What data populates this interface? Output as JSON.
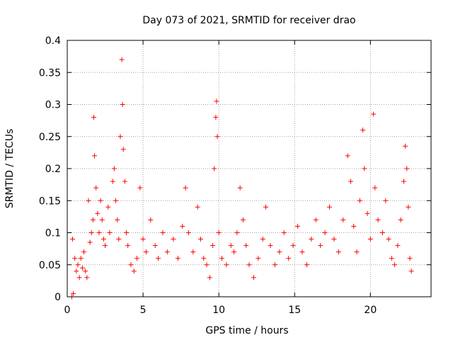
{
  "chart_data": {
    "type": "scatter",
    "title": "Day 073 of 2021, SRMTID for receiver drao",
    "xlabel": "GPS time / hours",
    "ylabel": "SRMTID / TECUs",
    "xlim": [
      0,
      24
    ],
    "ylim": [
      0,
      0.4
    ],
    "grid": true,
    "marker": "+",
    "x_ticks": [
      0,
      5,
      10,
      15,
      20
    ],
    "x_tick_labels": [
      "0",
      "5",
      "10",
      "15",
      "20"
    ],
    "y_ticks": [
      0,
      0.05,
      0.1,
      0.15,
      0.2,
      0.25,
      0.3,
      0.35,
      0.4
    ],
    "y_tick_labels": [
      "0",
      "0.05",
      "0.1",
      "0.15",
      "0.2",
      "0.25",
      "0.3",
      "0.35",
      "0.4"
    ],
    "colors": {
      "points": "#ff0000",
      "grid": "#a0a0a0",
      "axis": "#000000"
    },
    "series": [
      {
        "name": "SRMTID",
        "points": [
          [
            0.3,
            0.0
          ],
          [
            0.4,
            0.005
          ],
          [
            0.35,
            0.09
          ],
          [
            0.5,
            0.06
          ],
          [
            0.6,
            0.04
          ],
          [
            0.7,
            0.05
          ],
          [
            0.8,
            0.03
          ],
          [
            0.9,
            0.06
          ],
          [
            1.0,
            0.045
          ],
          [
            1.1,
            0.07
          ],
          [
            1.2,
            0.04
          ],
          [
            1.3,
            0.03
          ],
          [
            1.4,
            0.15
          ],
          [
            1.5,
            0.085
          ],
          [
            1.6,
            0.1
          ],
          [
            1.7,
            0.12
          ],
          [
            1.75,
            0.28
          ],
          [
            1.8,
            0.22
          ],
          [
            1.9,
            0.17
          ],
          [
            2.0,
            0.13
          ],
          [
            2.1,
            0.1
          ],
          [
            2.2,
            0.15
          ],
          [
            2.3,
            0.12
          ],
          [
            2.4,
            0.09
          ],
          [
            2.5,
            0.08
          ],
          [
            2.7,
            0.14
          ],
          [
            2.8,
            0.1
          ],
          [
            3.0,
            0.18
          ],
          [
            3.1,
            0.2
          ],
          [
            3.2,
            0.15
          ],
          [
            3.3,
            0.12
          ],
          [
            3.4,
            0.09
          ],
          [
            3.5,
            0.25
          ],
          [
            3.6,
            0.37
          ],
          [
            3.65,
            0.3
          ],
          [
            3.7,
            0.23
          ],
          [
            3.8,
            0.18
          ],
          [
            3.9,
            0.1
          ],
          [
            4.0,
            0.08
          ],
          [
            4.2,
            0.05
          ],
          [
            4.4,
            0.04
          ],
          [
            4.6,
            0.06
          ],
          [
            4.8,
            0.17
          ],
          [
            5.0,
            0.09
          ],
          [
            5.2,
            0.07
          ],
          [
            5.5,
            0.12
          ],
          [
            5.8,
            0.08
          ],
          [
            6.0,
            0.06
          ],
          [
            6.3,
            0.1
          ],
          [
            6.6,
            0.07
          ],
          [
            7.0,
            0.09
          ],
          [
            7.3,
            0.06
          ],
          [
            7.6,
            0.11
          ],
          [
            7.8,
            0.17
          ],
          [
            8.0,
            0.1
          ],
          [
            8.3,
            0.07
          ],
          [
            8.6,
            0.14
          ],
          [
            8.8,
            0.09
          ],
          [
            9.0,
            0.06
          ],
          [
            9.2,
            0.05
          ],
          [
            9.4,
            0.03
          ],
          [
            9.6,
            0.08
          ],
          [
            9.7,
            0.2
          ],
          [
            9.8,
            0.28
          ],
          [
            9.85,
            0.305
          ],
          [
            9.9,
            0.25
          ],
          [
            10.0,
            0.1
          ],
          [
            10.2,
            0.06
          ],
          [
            10.5,
            0.05
          ],
          [
            10.8,
            0.08
          ],
          [
            11.0,
            0.07
          ],
          [
            11.2,
            0.1
          ],
          [
            11.4,
            0.17
          ],
          [
            11.6,
            0.12
          ],
          [
            11.8,
            0.08
          ],
          [
            12.0,
            0.05
          ],
          [
            12.3,
            0.03
          ],
          [
            12.6,
            0.06
          ],
          [
            12.9,
            0.09
          ],
          [
            13.1,
            0.14
          ],
          [
            13.4,
            0.08
          ],
          [
            13.7,
            0.05
          ],
          [
            14.0,
            0.07
          ],
          [
            14.3,
            0.1
          ],
          [
            14.6,
            0.06
          ],
          [
            14.9,
            0.08
          ],
          [
            15.2,
            0.11
          ],
          [
            15.5,
            0.07
          ],
          [
            15.8,
            0.05
          ],
          [
            16.1,
            0.09
          ],
          [
            16.4,
            0.12
          ],
          [
            16.7,
            0.08
          ],
          [
            17.0,
            0.1
          ],
          [
            17.3,
            0.14
          ],
          [
            17.6,
            0.09
          ],
          [
            17.9,
            0.07
          ],
          [
            18.2,
            0.12
          ],
          [
            18.5,
            0.22
          ],
          [
            18.7,
            0.18
          ],
          [
            18.9,
            0.11
          ],
          [
            19.1,
            0.07
          ],
          [
            19.3,
            0.15
          ],
          [
            19.5,
            0.26
          ],
          [
            19.6,
            0.2
          ],
          [
            19.8,
            0.13
          ],
          [
            20.0,
            0.09
          ],
          [
            20.2,
            0.285
          ],
          [
            20.3,
            0.17
          ],
          [
            20.5,
            0.12
          ],
          [
            20.8,
            0.1
          ],
          [
            21.0,
            0.15
          ],
          [
            21.2,
            0.09
          ],
          [
            21.4,
            0.06
          ],
          [
            21.6,
            0.05
          ],
          [
            21.8,
            0.08
          ],
          [
            22.0,
            0.12
          ],
          [
            22.2,
            0.18
          ],
          [
            22.3,
            0.235
          ],
          [
            22.4,
            0.2
          ],
          [
            22.5,
            0.14
          ],
          [
            22.6,
            0.06
          ],
          [
            22.7,
            0.04
          ]
        ]
      }
    ]
  }
}
